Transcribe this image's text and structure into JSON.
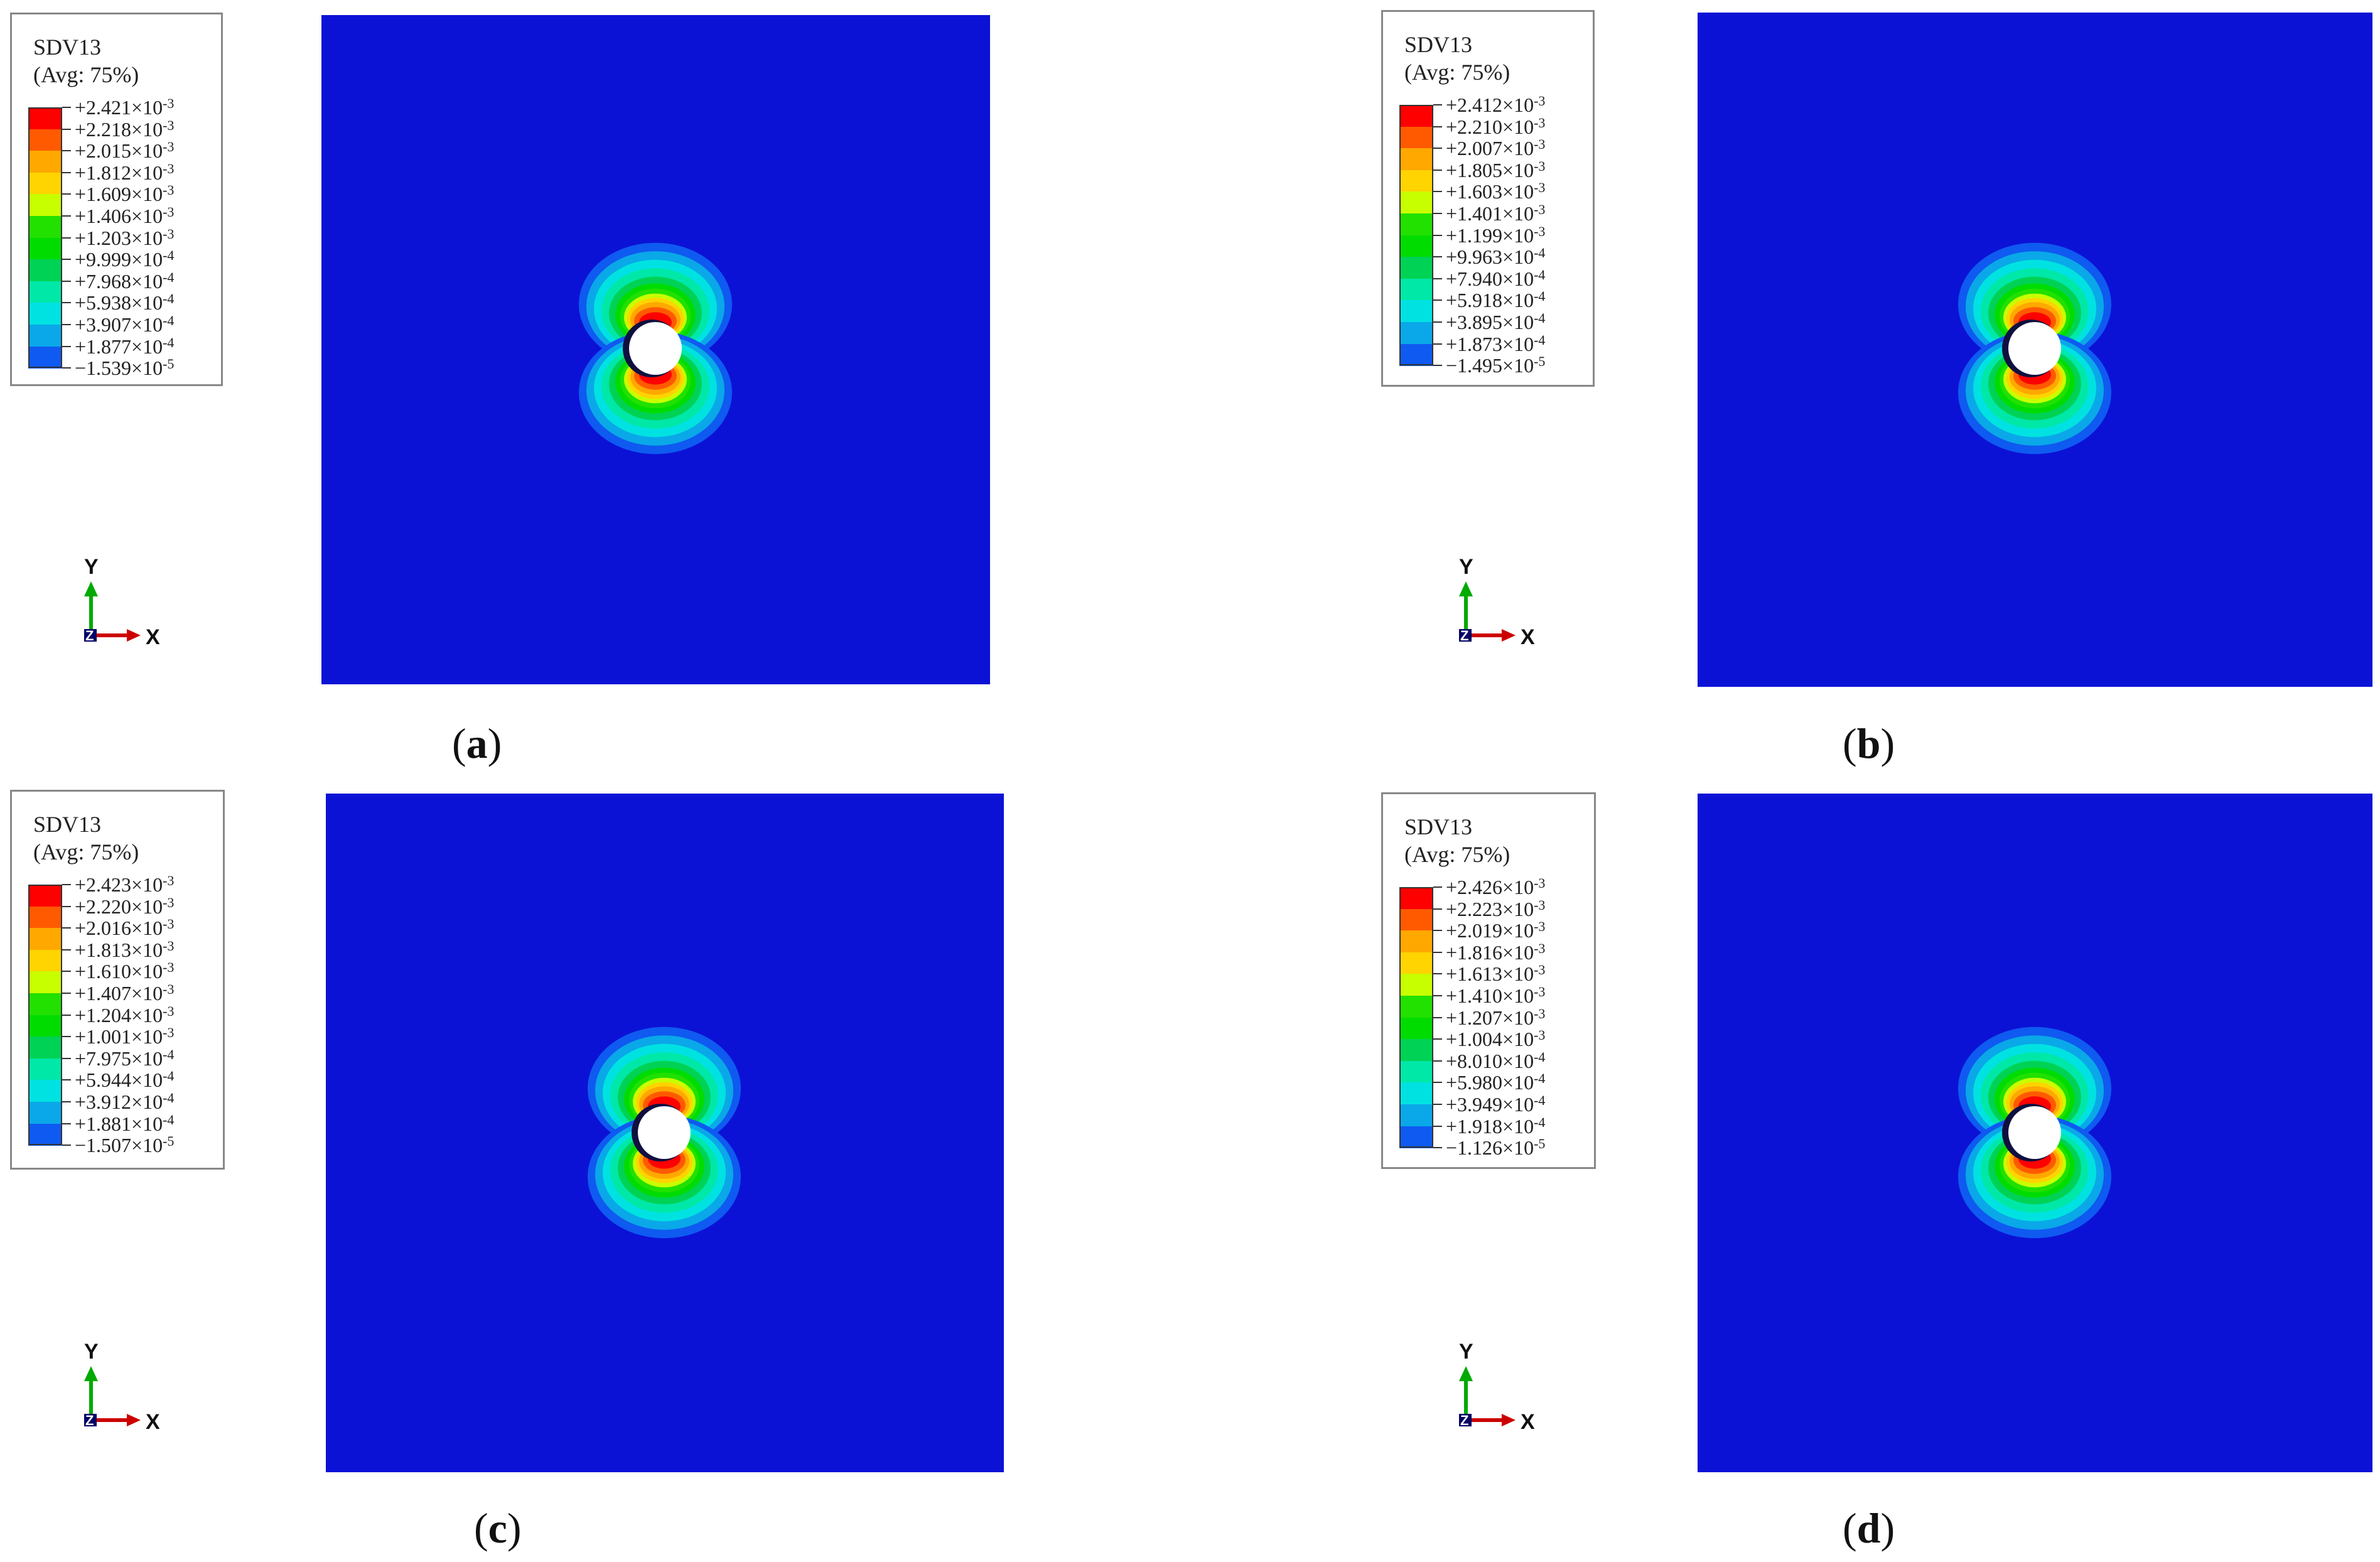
{
  "colors": {
    "plate": "#0b12d6",
    "hole": "#ffffff",
    "x_axis": "#cc0000",
    "y_axis": "#00aa00",
    "z_axis": "#000066",
    "bands": [
      "#ff0000",
      "#ff5a00",
      "#ffa800",
      "#ffd400",
      "#c8ff00",
      "#22e000",
      "#00dc00",
      "#00d255",
      "#00e8a8",
      "#00e2e2",
      "#0aa8e8",
      "#0f5af0",
      "#0606d8"
    ]
  },
  "icons": {
    "triad": "axis-triad-icon"
  },
  "panels": [
    {
      "id": "a",
      "caption": "a",
      "legend": {
        "variable": "SDV13",
        "averaging": "(Avg: 75%)",
        "values": [
          {
            "m": "+2.421",
            "e": "-3"
          },
          {
            "m": "+2.218",
            "e": "-3"
          },
          {
            "m": "+2.015",
            "e": "-3"
          },
          {
            "m": "+1.812",
            "e": "-3"
          },
          {
            "m": "+1.609",
            "e": "-3"
          },
          {
            "m": "+1.406",
            "e": "-3"
          },
          {
            "m": "+1.203",
            "e": "-3"
          },
          {
            "m": "+9.999",
            "e": "-4"
          },
          {
            "m": "+7.968",
            "e": "-4"
          },
          {
            "m": "+5.938",
            "e": "-4"
          },
          {
            "m": "+3.907",
            "e": "-4"
          },
          {
            "m": "+1.877",
            "e": "-4"
          },
          {
            "m": "−1.539",
            "e": "-5"
          }
        ]
      },
      "axes": {
        "x": "X",
        "y": "Y",
        "z": "Z"
      }
    },
    {
      "id": "b",
      "caption": "b",
      "legend": {
        "variable": "SDV13",
        "averaging": "(Avg: 75%)",
        "values": [
          {
            "m": "+2.412",
            "e": "-3"
          },
          {
            "m": "+2.210",
            "e": "-3"
          },
          {
            "m": "+2.007",
            "e": "-3"
          },
          {
            "m": "+1.805",
            "e": "-3"
          },
          {
            "m": "+1.603",
            "e": "-3"
          },
          {
            "m": "+1.401",
            "e": "-3"
          },
          {
            "m": "+1.199",
            "e": "-3"
          },
          {
            "m": "+9.963",
            "e": "-4"
          },
          {
            "m": "+7.940",
            "e": "-4"
          },
          {
            "m": "+5.918",
            "e": "-4"
          },
          {
            "m": "+3.895",
            "e": "-4"
          },
          {
            "m": "+1.873",
            "e": "-4"
          },
          {
            "m": "−1.495",
            "e": "-5"
          }
        ]
      },
      "axes": {
        "x": "X",
        "y": "Y",
        "z": "Z"
      }
    },
    {
      "id": "c",
      "caption": "c",
      "legend": {
        "variable": "SDV13",
        "averaging": "(Avg: 75%)",
        "values": [
          {
            "m": "+2.423",
            "e": "-3"
          },
          {
            "m": "+2.220",
            "e": "-3"
          },
          {
            "m": "+2.016",
            "e": "-3"
          },
          {
            "m": "+1.813",
            "e": "-3"
          },
          {
            "m": "+1.610",
            "e": "-3"
          },
          {
            "m": "+1.407",
            "e": "-3"
          },
          {
            "m": "+1.204",
            "e": "-3"
          },
          {
            "m": "+1.001",
            "e": "-3"
          },
          {
            "m": "+7.975",
            "e": "-4"
          },
          {
            "m": "+5.944",
            "e": "-4"
          },
          {
            "m": "+3.912",
            "e": "-4"
          },
          {
            "m": "+1.881",
            "e": "-4"
          },
          {
            "m": "−1.507",
            "e": "-5"
          }
        ]
      },
      "axes": {
        "x": "X",
        "y": "Y",
        "z": "Z"
      }
    },
    {
      "id": "d",
      "caption": "d",
      "legend": {
        "variable": "SDV13",
        "averaging": "(Avg: 75%)",
        "values": [
          {
            "m": "+2.426",
            "e": "-3"
          },
          {
            "m": "+2.223",
            "e": "-3"
          },
          {
            "m": "+2.019",
            "e": "-3"
          },
          {
            "m": "+1.816",
            "e": "-3"
          },
          {
            "m": "+1.613",
            "e": "-3"
          },
          {
            "m": "+1.410",
            "e": "-3"
          },
          {
            "m": "+1.207",
            "e": "-3"
          },
          {
            "m": "+1.004",
            "e": "-3"
          },
          {
            "m": "+8.010",
            "e": "-4"
          },
          {
            "m": "+5.980",
            "e": "-4"
          },
          {
            "m": "+3.949",
            "e": "-4"
          },
          {
            "m": "+1.918",
            "e": "-4"
          },
          {
            "m": "−1.126",
            "e": "-5"
          }
        ]
      },
      "axes": {
        "x": "X",
        "y": "Y",
        "z": "Z"
      }
    }
  ]
}
